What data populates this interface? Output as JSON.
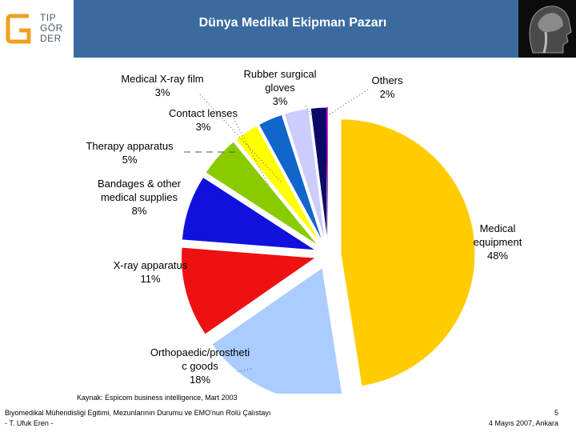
{
  "header": {
    "logo_lines": [
      "TIP",
      "GÖR",
      "DER"
    ],
    "title": "Dünya Medikal Ekipman Pazarı",
    "brand_color": "#3a6aa0",
    "logo_accent": "#f0a020"
  },
  "chart_data": {
    "type": "pie",
    "title": "",
    "slices": [
      {
        "label": [
          "Medical",
          "equipment"
        ],
        "value": 48,
        "value_label": "48%",
        "color": "#ffcc00",
        "exploded": true
      },
      {
        "label": [
          "Orthopaedic/prostheti",
          "c goods"
        ],
        "value": 18,
        "value_label": "18%",
        "color": "#aaccff",
        "exploded": true
      },
      {
        "label": [
          "X-ray apparatus"
        ],
        "value": 11,
        "value_label": "11%",
        "color": "#ee1111",
        "exploded": true
      },
      {
        "label": [
          "Bandages & other",
          "medical supplies"
        ],
        "value": 8,
        "value_label": "8%",
        "color": "#1111dd",
        "exploded": true
      },
      {
        "label": [
          "Therapy apparatus"
        ],
        "value": 5,
        "value_label": "5%",
        "color": "#88cc00",
        "exploded": true
      },
      {
        "label": [
          "Contact lenses"
        ],
        "value": 3,
        "value_label": "3%",
        "color": "#ffff00",
        "exploded": true
      },
      {
        "label": [
          "Medical X-ray film"
        ],
        "value": 3,
        "value_label": "3%",
        "color": "#1166cc",
        "exploded": true
      },
      {
        "label": [
          "Rubber surgical",
          "gloves"
        ],
        "value": 3,
        "value_label": "3%",
        "color": "#ccccff",
        "exploded": true
      },
      {
        "label": [
          "Others"
        ],
        "value": 2,
        "value_label": "2%",
        "color": "#0a0a66",
        "exploded": true
      }
    ],
    "accent_slice_color": "#cc00cc"
  },
  "source": "Kaynak: Espicom business intelligence, Mart 2003",
  "footer": {
    "left_line1": "Biyomedikal Mühendisligi Egitimi, Mezunlarının Durumu ve EMO'nun Rolü Çalıstayı",
    "left_line2": "- T. Ufuk Eren -",
    "page_number": "5",
    "date_place": "4 Mayıs 2007, Ankara"
  }
}
